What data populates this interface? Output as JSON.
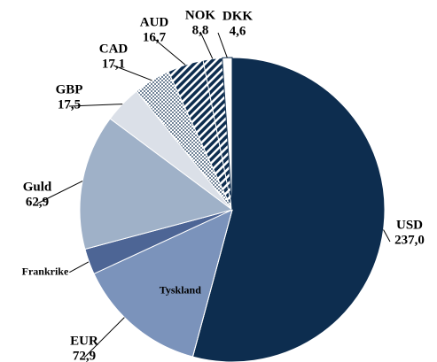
{
  "chart_data": {
    "type": "pie",
    "slices": [
      {
        "name": "USD",
        "value": 237.0,
        "value_label": "237,0",
        "color": "#0d2d4f"
      },
      {
        "name": "EUR",
        "value": 72.9,
        "value_label": "72,9",
        "parts": [
          {
            "name": "Tyskland",
            "value": 60.9,
            "color": "#7b93bb"
          },
          {
            "name": "Frankrike",
            "value": 12.0,
            "color": "#4d6595"
          }
        ]
      },
      {
        "name": "Guld",
        "value": 62.9,
        "value_label": "62,9",
        "color": "#9fb1c8"
      },
      {
        "name": "GBP",
        "value": 17.5,
        "value_label": "17,5",
        "color": "#dbe0e8"
      },
      {
        "name": "CAD",
        "value": 17.1,
        "value_label": "17,1",
        "color": "#ffffff",
        "pattern": "dots"
      },
      {
        "name": "AUD",
        "value": 16.7,
        "value_label": "16,7",
        "color": "#0d2d4f",
        "pattern": "stripes"
      },
      {
        "name": "NOK",
        "value": 8.8,
        "value_label": "8,8",
        "color": "#0d2d4f",
        "pattern": "stripes"
      },
      {
        "name": "DKK",
        "value": 4.6,
        "value_label": "4,6",
        "color": "#ffffff"
      }
    ]
  }
}
